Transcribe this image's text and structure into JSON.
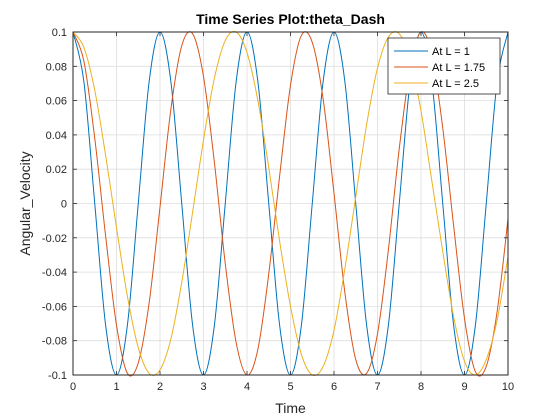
{
  "chart_data": {
    "type": "line",
    "title": "Time Series Plot:theta_Dash",
    "xlabel": "Time",
    "ylabel": "Angular_Velocity",
    "xlim": [
      0,
      10
    ],
    "ylim": [
      -0.1,
      0.1
    ],
    "xticks": [
      "0",
      "1",
      "2",
      "3",
      "4",
      "5",
      "6",
      "7",
      "8",
      "9",
      "10"
    ],
    "yticks": [
      "-0.1",
      "-0.08",
      "-0.06",
      "-0.04",
      "-0.02",
      "0",
      "0.02",
      "0.04",
      "0.06",
      "0.08",
      "0.1"
    ],
    "grid": true,
    "legend_position": "top-right",
    "series": [
      {
        "name": "At L = 1",
        "color": "#0072BD",
        "x": [
          0,
          0.25,
          0.5,
          0.75,
          1,
          1.25,
          1.5,
          1.75,
          2,
          2.25,
          2.5,
          2.75,
          3,
          3.25,
          3.5,
          3.75,
          4,
          4.25,
          4.5,
          4.75,
          5,
          5.25,
          5.5,
          5.75,
          6,
          6.25,
          6.5,
          6.75,
          7,
          7.25,
          7.5,
          7.75,
          8,
          8.25,
          8.5,
          8.75,
          9,
          9.25,
          9.5,
          9.75,
          10
        ],
        "y": [
          0.1,
          0.071,
          0.0,
          -0.071,
          -0.1,
          -0.071,
          0.0,
          0.071,
          0.1,
          0.071,
          0.0,
          -0.071,
          -0.1,
          -0.071,
          0.0,
          0.071,
          0.1,
          0.071,
          0.0,
          -0.071,
          -0.1,
          -0.071,
          0.0,
          0.071,
          0.1,
          0.071,
          0.0,
          -0.071,
          -0.1,
          -0.071,
          0.0,
          0.071,
          0.1,
          0.071,
          0.0,
          -0.071,
          -0.1,
          -0.071,
          0.0,
          0.071,
          0.1
        ]
      },
      {
        "name": "At L = 1.75",
        "color": "#D95319",
        "x": [
          0,
          0.25,
          0.5,
          0.75,
          1,
          1.25,
          1.5,
          1.75,
          2,
          2.25,
          2.5,
          2.75,
          3,
          3.25,
          3.5,
          3.75,
          4,
          4.25,
          4.5,
          4.75,
          5,
          5.25,
          5.5,
          5.75,
          6,
          6.25,
          6.5,
          6.75,
          7,
          7.25,
          7.5,
          7.75,
          8,
          8.25,
          8.5,
          8.75,
          9,
          9.25,
          9.5,
          9.75,
          10
        ],
        "y": [
          0.1,
          0.083,
          0.038,
          -0.019,
          -0.071,
          -0.099,
          -0.093,
          -0.058,
          -0.002,
          0.055,
          0.092,
          0.099,
          0.074,
          0.024,
          -0.035,
          -0.081,
          -0.1,
          -0.085,
          -0.041,
          0.016,
          0.069,
          0.098,
          0.094,
          0.061,
          0.006,
          -0.052,
          -0.091,
          -0.099,
          -0.076,
          -0.027,
          0.032,
          0.079,
          0.1,
          0.087,
          0.044,
          -0.013,
          -0.067,
          -0.098,
          -0.095,
          -0.063,
          -0.009
        ]
      },
      {
        "name": "At L = 2.5",
        "color": "#EDB120",
        "x": [
          0,
          0.25,
          0.5,
          0.75,
          1,
          1.25,
          1.5,
          1.75,
          2,
          2.25,
          2.5,
          2.75,
          3,
          3.25,
          3.5,
          3.75,
          4,
          4.25,
          4.5,
          4.75,
          5,
          5.25,
          5.5,
          5.75,
          6,
          6.25,
          6.5,
          6.75,
          7,
          7.25,
          7.5,
          7.75,
          8,
          8.25,
          8.5,
          8.75,
          9,
          9.25,
          9.5,
          9.75,
          10
        ],
        "y": [
          0.1,
          0.091,
          0.066,
          0.028,
          -0.014,
          -0.054,
          -0.084,
          -0.099,
          -0.097,
          -0.079,
          -0.046,
          -0.005,
          0.037,
          0.073,
          0.095,
          0.1,
          0.088,
          0.06,
          0.021,
          -0.022,
          -0.06,
          -0.088,
          -0.1,
          -0.095,
          -0.074,
          -0.038,
          0.004,
          0.046,
          0.079,
          0.097,
          0.099,
          0.084,
          0.054,
          0.013,
          -0.028,
          -0.066,
          -0.092,
          -0.1,
          -0.091,
          -0.068,
          -0.031
        ]
      }
    ]
  }
}
